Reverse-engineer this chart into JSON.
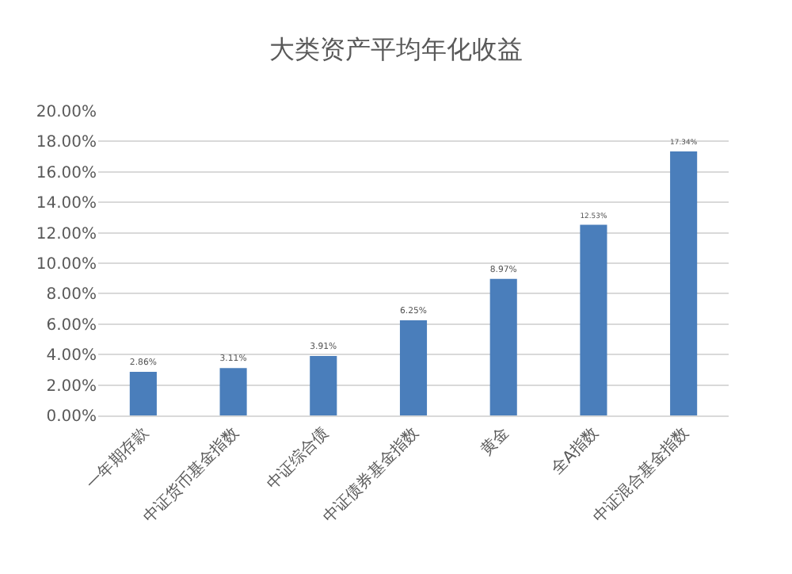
{
  "chart_data": {
    "type": "bar",
    "title": "大类资产平均年化收益",
    "categories": [
      "一年期存款",
      "中证货币基金指数",
      "中证综合债",
      "中证债券基金指数",
      "黄金",
      "全A指数",
      "中证混合基金指数"
    ],
    "values": [
      2.86,
      3.11,
      3.91,
      6.25,
      8.97,
      12.53,
      17.34
    ],
    "value_labels": [
      "2.86%",
      "3.11%",
      "3.91%",
      "6.25%",
      "8.97%",
      "12.53%",
      "17.34%"
    ],
    "color": "#4a7ebb",
    "ylim": [
      0,
      20
    ],
    "yticks": [
      {
        "value": 0,
        "label": "0.00%"
      },
      {
        "value": 2,
        "label": "2.00%"
      },
      {
        "value": 4,
        "label": "4.00%"
      },
      {
        "value": 6,
        "label": "6.00%"
      },
      {
        "value": 8,
        "label": "8.00%"
      },
      {
        "value": 10,
        "label": "10.00%"
      },
      {
        "value": 12,
        "label": "12.00%"
      },
      {
        "value": 14,
        "label": "14.00%"
      },
      {
        "value": 16,
        "label": "16.00%"
      },
      {
        "value": 18,
        "label": "18.00%"
      },
      {
        "value": 20,
        "label": "20.00%"
      }
    ],
    "grid": "y"
  }
}
